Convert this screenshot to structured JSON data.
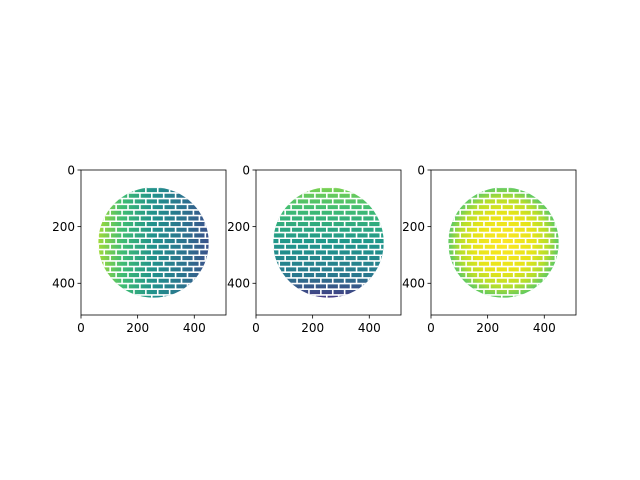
{
  "figure": {
    "background": "#ffffff"
  },
  "chart_data": [
    {
      "type": "heatmap",
      "panel": "left",
      "image_size": [
        512,
        512
      ],
      "xlim": [
        0,
        512
      ],
      "ylim": [
        512,
        0
      ],
      "xticks": [
        0,
        200,
        400
      ],
      "yticks": [
        0,
        200,
        400
      ],
      "xtick_labels": [
        "0",
        "200",
        "400"
      ],
      "ytick_labels": [
        "0",
        "200",
        "400"
      ],
      "content": "brick-textured sphere, shaded along x",
      "gradient": {
        "direction": "horizontal",
        "stops": [
          {
            "at": 0.0,
            "color": "#a0da39"
          },
          {
            "at": 0.22,
            "color": "#3fbc73"
          },
          {
            "at": 0.5,
            "color": "#21918c"
          },
          {
            "at": 0.78,
            "color": "#2c728e"
          },
          {
            "at": 1.0,
            "color": "#3b528b"
          }
        ]
      }
    },
    {
      "type": "heatmap",
      "panel": "middle",
      "image_size": [
        512,
        512
      ],
      "xlim": [
        0,
        512
      ],
      "ylim": [
        512,
        0
      ],
      "xticks": [
        0,
        200,
        400
      ],
      "yticks": [
        0,
        200,
        400
      ],
      "xtick_labels": [
        "0",
        "200",
        "400"
      ],
      "ytick_labels": [
        "0",
        "200",
        "400"
      ],
      "content": "brick-textured sphere, shaded along y",
      "gradient": {
        "direction": "vertical",
        "stops": [
          {
            "at": 0.0,
            "color": "#7ad151"
          },
          {
            "at": 0.2,
            "color": "#3fbc73"
          },
          {
            "at": 0.5,
            "color": "#1f968b"
          },
          {
            "at": 0.8,
            "color": "#2a788e"
          },
          {
            "at": 1.0,
            "color": "#443983"
          }
        ]
      }
    },
    {
      "type": "heatmap",
      "panel": "right",
      "image_size": [
        512,
        512
      ],
      "xlim": [
        0,
        512
      ],
      "ylim": [
        512,
        0
      ],
      "xticks": [
        0,
        200,
        400
      ],
      "yticks": [
        0,
        200,
        400
      ],
      "xtick_labels": [
        "0",
        "200",
        "400"
      ],
      "ytick_labels": [
        "0",
        "200",
        "400"
      ],
      "content": "brick-textured sphere, bright center",
      "gradient": {
        "direction": "radial",
        "stops": [
          {
            "at": 0.0,
            "color": "#fde725"
          },
          {
            "at": 0.55,
            "color": "#e5e419"
          },
          {
            "at": 0.8,
            "color": "#b5de2b"
          },
          {
            "at": 1.0,
            "color": "#5ec962"
          }
        ]
      }
    }
  ]
}
